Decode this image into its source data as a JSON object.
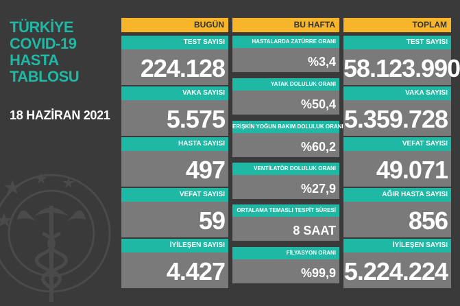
{
  "title_lines": [
    "TÜRKİYE",
    "COVID-19",
    "HASTA",
    "TABLOSU"
  ],
  "date": "18 HAZİRAN 2021",
  "columns": {
    "today": {
      "header": "BUGÜN",
      "items": [
        {
          "label": "TEST SAYISI",
          "value": "224.128"
        },
        {
          "label": "VAKA SAYISI",
          "value": "5.575"
        },
        {
          "label": "HASTA SAYISI",
          "value": "497"
        },
        {
          "label": "VEFAT SAYISI",
          "value": "59"
        },
        {
          "label": "İYİLEŞEN SAYISI",
          "value": "4.427"
        }
      ]
    },
    "week": {
      "header": "BU HAFTA",
      "items": [
        {
          "label": "HASTALARDA ZATÜRRE ORANI",
          "value": "%3,4"
        },
        {
          "label": "YATAK DOLULUK ORANI",
          "value": "%50,4"
        },
        {
          "label": "ERİŞKİN YOĞUN BAKIM DOLULUK ORANI",
          "value": "%60,2"
        },
        {
          "label": "VENTİLATÖR DOLULUK ORANI",
          "value": "%27,9"
        },
        {
          "label": "ORTALAMA TEMASLI TESPİT SÜRESİ",
          "value": "8 SAAT"
        },
        {
          "label": "FİLYASYON ORANI",
          "value": "%99,9"
        }
      ]
    },
    "total": {
      "header": "TOPLAM",
      "items": [
        {
          "label": "TEST SAYISI",
          "value": "58.123.990"
        },
        {
          "label": "VAKA SAYISI",
          "value": "5.359.728"
        },
        {
          "label": "VEFAT SAYISI",
          "value": "49.071"
        },
        {
          "label": "AĞIR HASTA SAYISI",
          "value": "856"
        },
        {
          "label": "İYİLEŞEN SAYISI",
          "value": "5.224.224"
        }
      ]
    }
  },
  "colors": {
    "background": "#3a3a3a",
    "accent_teal": "#1fb8a4",
    "header_orange": "#f6b52b",
    "value_gray": "#7a7a7a"
  },
  "icons": [
    "ministry-of-health-emblem-icon"
  ]
}
